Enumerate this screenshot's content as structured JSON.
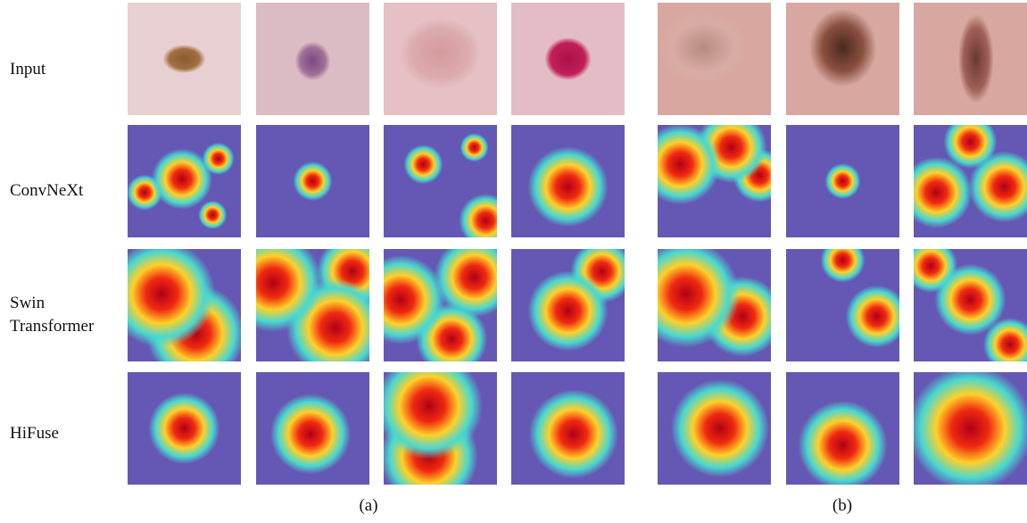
{
  "figure": {
    "row_labels": [
      "Input",
      "ConvNeXt",
      "Swin Transformer",
      "HiFuse"
    ],
    "panel_labels": [
      "(a)",
      "(b)"
    ]
  }
}
